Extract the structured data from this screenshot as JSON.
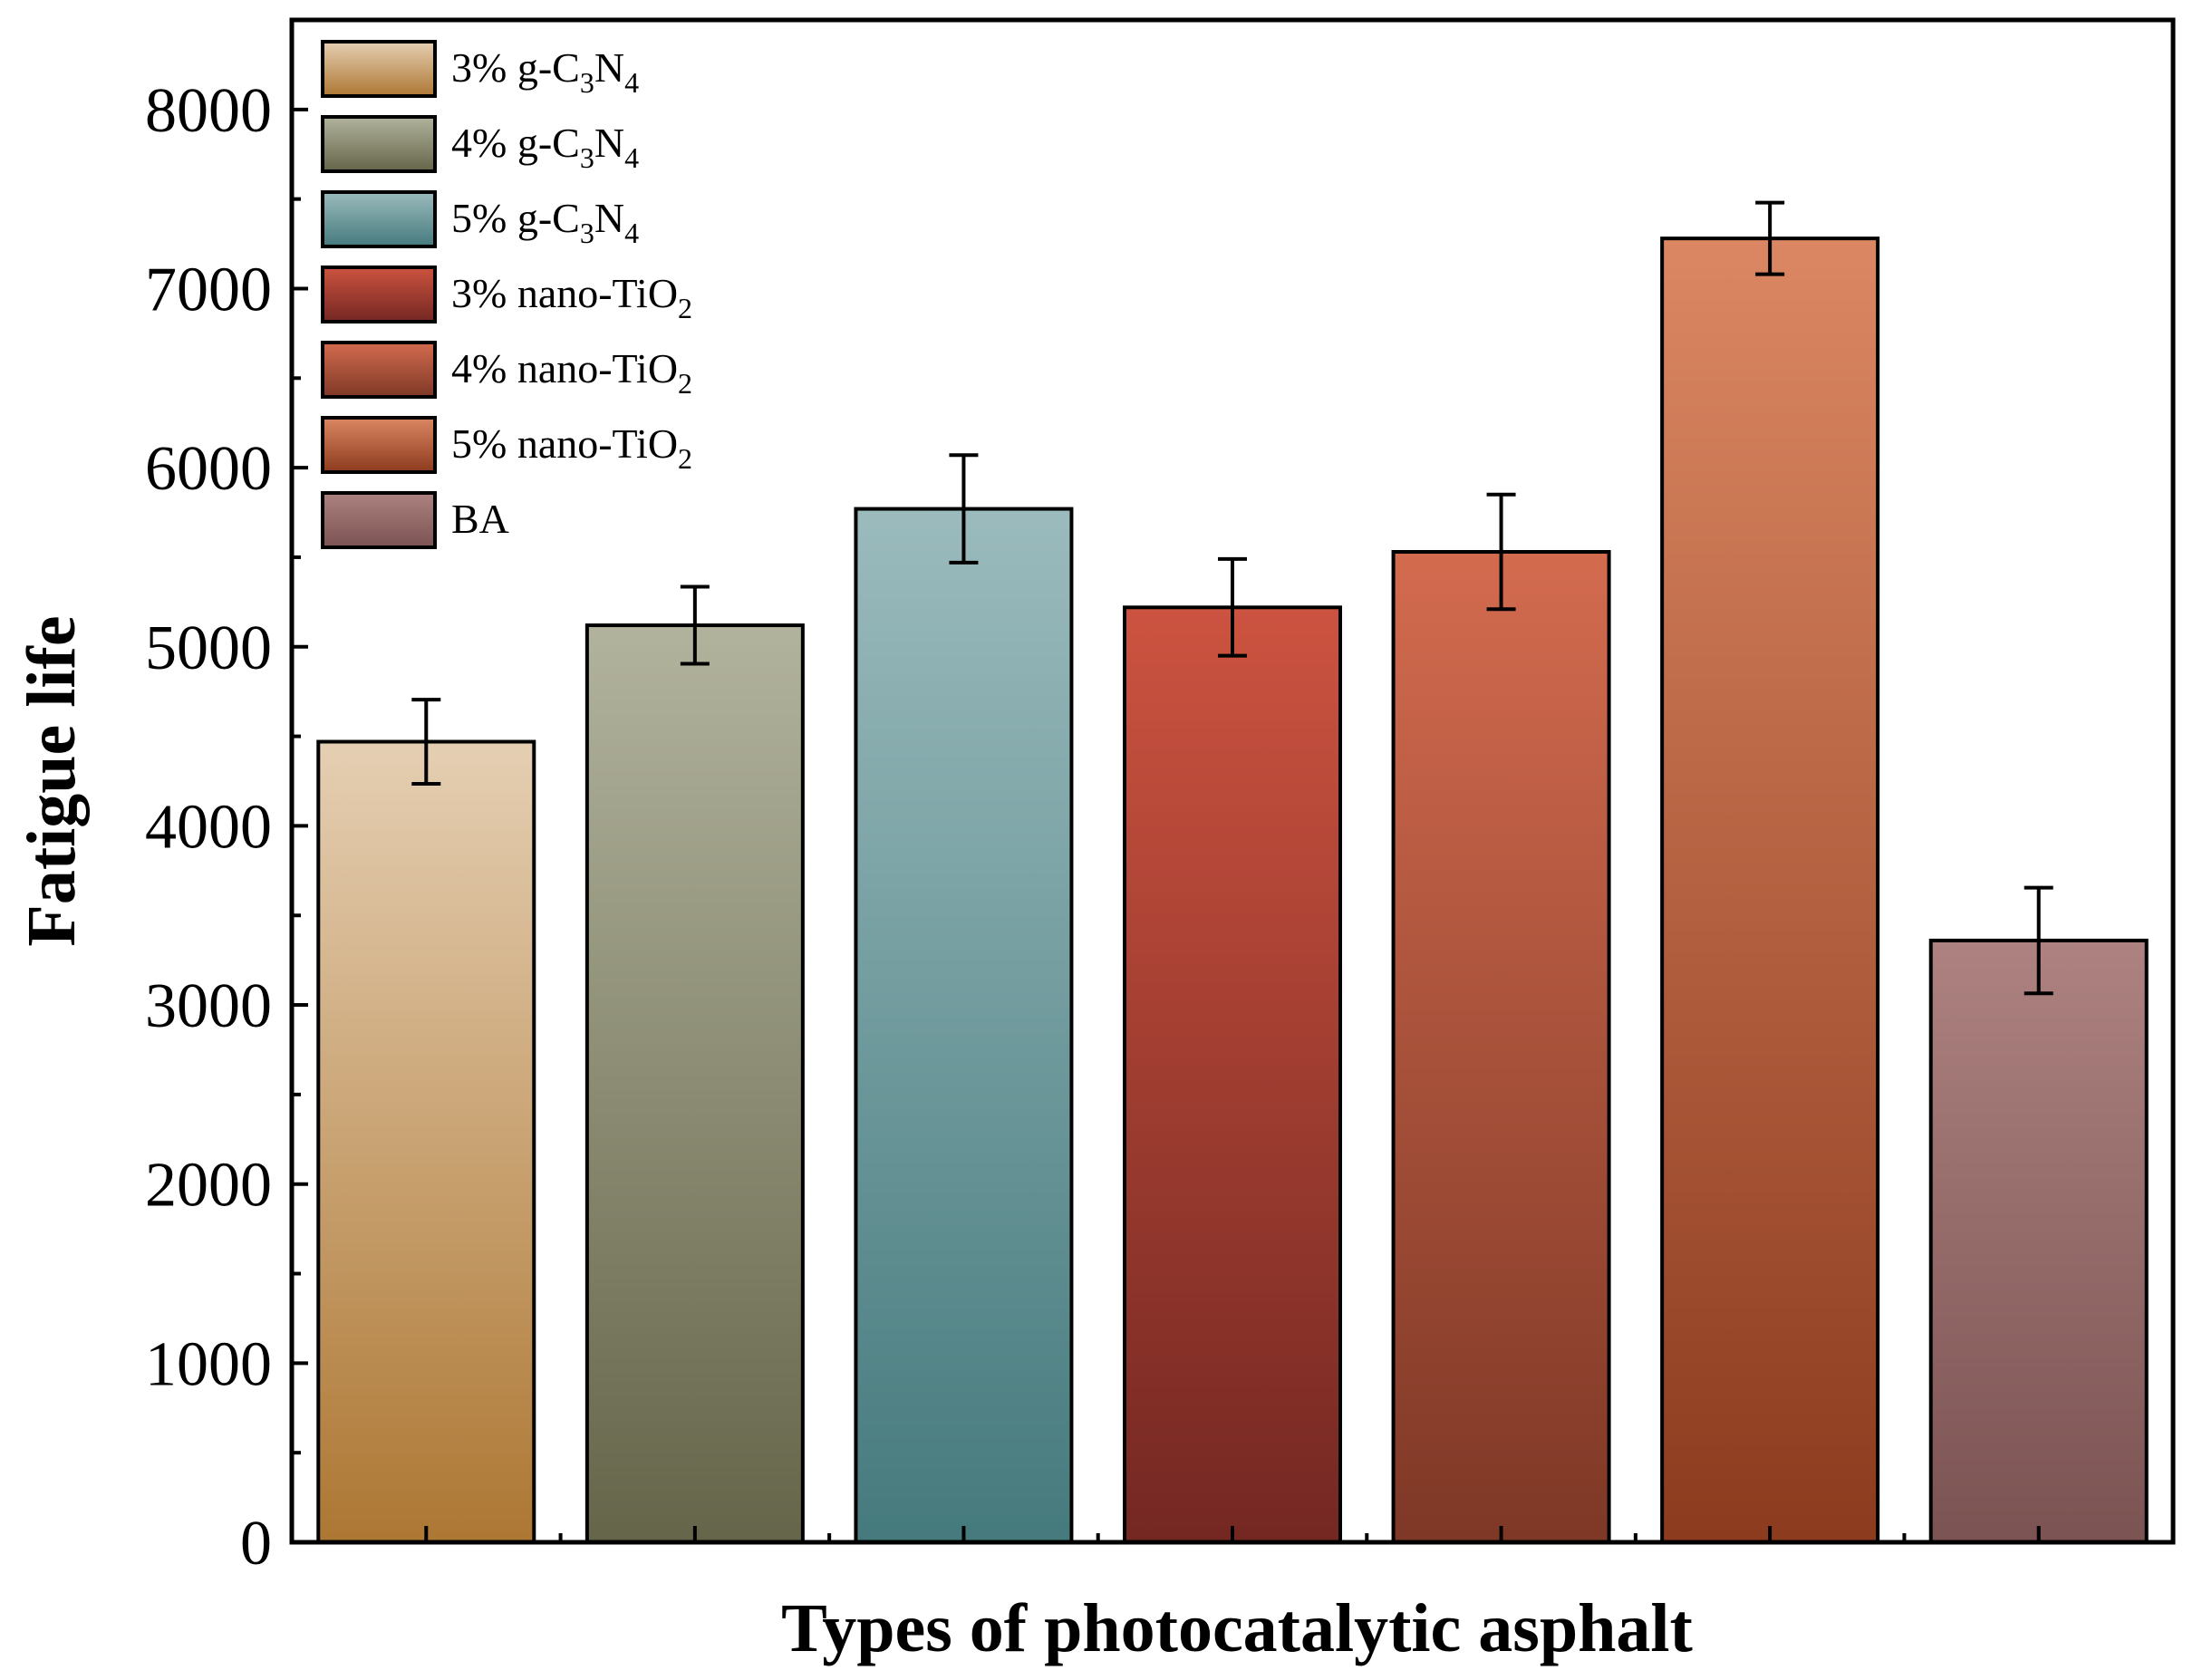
{
  "chart_data": {
    "type": "bar",
    "xlabel": "Types of photocatalytic asphalt",
    "ylabel": "Fatigue life",
    "ylim": [
      0,
      8500
    ],
    "yticks": [
      "0",
      "1000",
      "2000",
      "3000",
      "4000",
      "5000",
      "6000",
      "7000",
      "8000"
    ],
    "grid": false,
    "legend_position": "top-left",
    "categories": [
      {
        "name": "3% g-C3N4",
        "base": "3% g-C",
        "sub1": "3",
        "mid": "N",
        "sub2": "4"
      },
      {
        "name": "4% g-C3N4",
        "base": "4% g-C",
        "sub1": "3",
        "mid": "N",
        "sub2": "4"
      },
      {
        "name": "5% g-C3N4",
        "base": "5% g-C",
        "sub1": "3",
        "mid": "N",
        "sub2": "4"
      },
      {
        "name": "3% nano-TiO2",
        "base": "3% nano-TiO",
        "sub1": "2",
        "mid": "",
        "sub2": ""
      },
      {
        "name": "4% nano-TiO2",
        "base": "4% nano-TiO",
        "sub1": "2",
        "mid": "",
        "sub2": ""
      },
      {
        "name": "5% nano-TiO2",
        "base": "5% nano-TiO",
        "sub1": "2",
        "mid": "",
        "sub2": ""
      },
      {
        "name": "BA",
        "base": "BA",
        "sub1": "",
        "mid": "",
        "sub2": ""
      }
    ],
    "values": [
      4470,
      5120,
      5770,
      5220,
      5530,
      7280,
      3360
    ],
    "errors": [
      235,
      215,
      300,
      270,
      320,
      200,
      295
    ],
    "colors": [
      {
        "top": "#e5cfb3",
        "bottom": "#ad7733"
      },
      {
        "top": "#b2b39d",
        "bottom": "#65654a"
      },
      {
        "top": "#9bbbbd",
        "bottom": "#457a7d"
      },
      {
        "top": "#cc5340",
        "bottom": "#742722"
      },
      {
        "top": "#d36b4f",
        "bottom": "#7e3826"
      },
      {
        "top": "#db8763",
        "bottom": "#8c3b1e"
      },
      {
        "top": "#ad8280",
        "bottom": "#7b5352"
      }
    ]
  }
}
